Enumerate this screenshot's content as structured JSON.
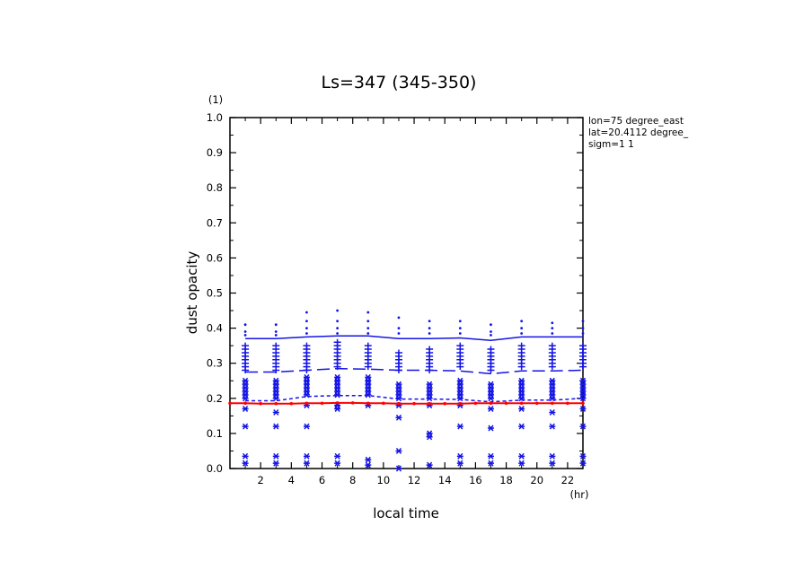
{
  "chart_data": {
    "type": "scatter",
    "title": "Ls=347 (345-350)",
    "xlabel": "local time",
    "ylabel": "dust opacity",
    "x_unit": "(hr)",
    "y_unit": "(1)",
    "xlim": [
      0,
      23
    ],
    "ylim": [
      0.0,
      1.0
    ],
    "x_ticks": [
      2,
      4,
      6,
      8,
      10,
      12,
      14,
      16,
      18,
      20,
      22
    ],
    "x_tick_labels": [
      "2",
      "4",
      "6",
      "8",
      "10",
      "12",
      "14",
      "16",
      "18",
      "20",
      "22"
    ],
    "y_ticks": [
      0.0,
      0.1,
      0.2,
      0.3,
      0.4,
      0.5,
      0.6,
      0.7,
      0.8,
      0.9,
      1.0
    ],
    "y_tick_labels": [
      "0.0",
      "0.1",
      "0.2",
      "0.3",
      "0.4",
      "0.5",
      "0.6",
      "0.7",
      "0.8",
      "0.9",
      "1.0"
    ],
    "info": [
      "lon=75 degree_east",
      "lat=20.4112 degree_",
      "sigm=1 1"
    ],
    "colors": {
      "samples": "#1414e6",
      "reference": "#ff0000"
    },
    "series": [
      {
        "style": "solid",
        "color": "#1414e6",
        "x": [
          1,
          3,
          5,
          7,
          9,
          11,
          13,
          15,
          17,
          19,
          21,
          23
        ],
        "y": [
          0.37,
          0.37,
          0.375,
          0.378,
          0.378,
          0.37,
          0.37,
          0.372,
          0.365,
          0.375,
          0.375,
          0.375
        ]
      },
      {
        "style": "long-dash",
        "color": "#1414e6",
        "x": [
          1,
          3,
          5,
          7,
          9,
          11,
          13,
          15,
          17,
          19,
          21,
          23
        ],
        "y": [
          0.275,
          0.275,
          0.28,
          0.285,
          0.283,
          0.28,
          0.28,
          0.278,
          0.27,
          0.278,
          0.278,
          0.28
        ]
      },
      {
        "style": "short-dash",
        "color": "#1414e6",
        "x": [
          1,
          3,
          5,
          7,
          9,
          11,
          13,
          15,
          17,
          19,
          21,
          23
        ],
        "y": [
          0.193,
          0.193,
          0.205,
          0.208,
          0.208,
          0.198,
          0.198,
          0.197,
          0.19,
          0.195,
          0.195,
          0.2
        ]
      },
      {
        "style": "solid-dots",
        "color": "#ff0000",
        "x": [
          0,
          1,
          2,
          3,
          4,
          5,
          6,
          7,
          8,
          9,
          10,
          11,
          12,
          13,
          14,
          15,
          16,
          17,
          18,
          19,
          20,
          21,
          22,
          23
        ],
        "y": [
          0.186,
          0.186,
          0.185,
          0.185,
          0.185,
          0.186,
          0.186,
          0.187,
          0.187,
          0.186,
          0.186,
          0.185,
          0.185,
          0.185,
          0.185,
          0.185,
          0.186,
          0.186,
          0.186,
          0.186,
          0.186,
          0.186,
          0.186,
          0.186
        ]
      }
    ],
    "samples": {
      "dots": [
        {
          "x": 1,
          "y": [
            0.41,
            0.39,
            0.38
          ]
        },
        {
          "x": 3,
          "y": [
            0.41,
            0.39,
            0.38
          ]
        },
        {
          "x": 5,
          "y": [
            0.445,
            0.42,
            0.4,
            0.385
          ]
        },
        {
          "x": 7,
          "y": [
            0.45,
            0.42,
            0.4,
            0.385
          ]
        },
        {
          "x": 9,
          "y": [
            0.445,
            0.42,
            0.4,
            0.385
          ]
        },
        {
          "x": 11,
          "y": [
            0.43,
            0.4,
            0.385
          ]
        },
        {
          "x": 13,
          "y": [
            0.42,
            0.4,
            0.385
          ]
        },
        {
          "x": 15,
          "y": [
            0.42,
            0.4,
            0.385
          ]
        },
        {
          "x": 17,
          "y": [
            0.41,
            0.39,
            0.38
          ]
        },
        {
          "x": 19,
          "y": [
            0.42,
            0.4,
            0.385
          ]
        },
        {
          "x": 21,
          "y": [
            0.415,
            0.4,
            0.385
          ]
        },
        {
          "x": 23,
          "y": [
            0.42,
            0.4,
            0.385
          ]
        }
      ],
      "plus": [
        {
          "x": 1,
          "y": [
            0.35,
            0.34,
            0.33,
            0.32,
            0.31,
            0.3,
            0.29,
            0.28
          ]
        },
        {
          "x": 3,
          "y": [
            0.35,
            0.34,
            0.33,
            0.32,
            0.31,
            0.3,
            0.29,
            0.28
          ]
        },
        {
          "x": 5,
          "y": [
            0.35,
            0.34,
            0.33,
            0.32,
            0.31,
            0.3,
            0.29,
            0.28
          ]
        },
        {
          "x": 7,
          "y": [
            0.36,
            0.35,
            0.34,
            0.33,
            0.32,
            0.31,
            0.3,
            0.29
          ]
        },
        {
          "x": 9,
          "y": [
            0.35,
            0.34,
            0.33,
            0.32,
            0.31,
            0.3,
            0.29
          ]
        },
        {
          "x": 11,
          "y": [
            0.33,
            0.32,
            0.31,
            0.3,
            0.29,
            0.28
          ]
        },
        {
          "x": 13,
          "y": [
            0.34,
            0.33,
            0.32,
            0.31,
            0.3,
            0.29,
            0.28
          ]
        },
        {
          "x": 15,
          "y": [
            0.35,
            0.34,
            0.33,
            0.32,
            0.31,
            0.3,
            0.29
          ]
        },
        {
          "x": 17,
          "y": [
            0.34,
            0.33,
            0.32,
            0.31,
            0.3,
            0.29,
            0.28
          ]
        },
        {
          "x": 19,
          "y": [
            0.35,
            0.34,
            0.33,
            0.32,
            0.31,
            0.3,
            0.29
          ]
        },
        {
          "x": 21,
          "y": [
            0.35,
            0.34,
            0.33,
            0.32,
            0.31,
            0.3,
            0.29
          ]
        },
        {
          "x": 23,
          "y": [
            0.35,
            0.34,
            0.33,
            0.32,
            0.31,
            0.3,
            0.29
          ]
        }
      ],
      "stars": [
        {
          "x": 1,
          "y": [
            0.25,
            0.24,
            0.23,
            0.22,
            0.21,
            0.2,
            0.17,
            0.12,
            0.035,
            0.015
          ]
        },
        {
          "x": 3,
          "y": [
            0.25,
            0.24,
            0.23,
            0.22,
            0.21,
            0.2,
            0.16,
            0.12,
            0.035,
            0.015
          ]
        },
        {
          "x": 5,
          "y": [
            0.26,
            0.25,
            0.24,
            0.23,
            0.22,
            0.21,
            0.18,
            0.12,
            0.035,
            0.015
          ]
        },
        {
          "x": 7,
          "y": [
            0.26,
            0.25,
            0.24,
            0.23,
            0.22,
            0.21,
            0.18,
            0.17,
            0.035,
            0.015
          ]
        },
        {
          "x": 9,
          "y": [
            0.26,
            0.25,
            0.24,
            0.23,
            0.22,
            0.21,
            0.18,
            0.025,
            0.01
          ]
        },
        {
          "x": 11,
          "y": [
            0.24,
            0.23,
            0.22,
            0.21,
            0.2,
            0.18,
            0.145,
            0.05,
            0.0
          ]
        },
        {
          "x": 13,
          "y": [
            0.24,
            0.23,
            0.22,
            0.21,
            0.2,
            0.18,
            0.1,
            0.09,
            0.01
          ]
        },
        {
          "x": 15,
          "y": [
            0.25,
            0.24,
            0.23,
            0.22,
            0.21,
            0.2,
            0.18,
            0.12,
            0.035,
            0.015
          ]
        },
        {
          "x": 17,
          "y": [
            0.24,
            0.23,
            0.22,
            0.21,
            0.2,
            0.17,
            0.115,
            0.035,
            0.015
          ]
        },
        {
          "x": 19,
          "y": [
            0.25,
            0.24,
            0.23,
            0.22,
            0.21,
            0.2,
            0.17,
            0.12,
            0.035,
            0.015
          ]
        },
        {
          "x": 21,
          "y": [
            0.25,
            0.24,
            0.23,
            0.22,
            0.21,
            0.2,
            0.16,
            0.12,
            0.035,
            0.015
          ]
        },
        {
          "x": 23,
          "y": [
            0.25,
            0.24,
            0.23,
            0.22,
            0.21,
            0.2,
            0.17,
            0.12,
            0.035,
            0.015
          ]
        }
      ]
    }
  }
}
